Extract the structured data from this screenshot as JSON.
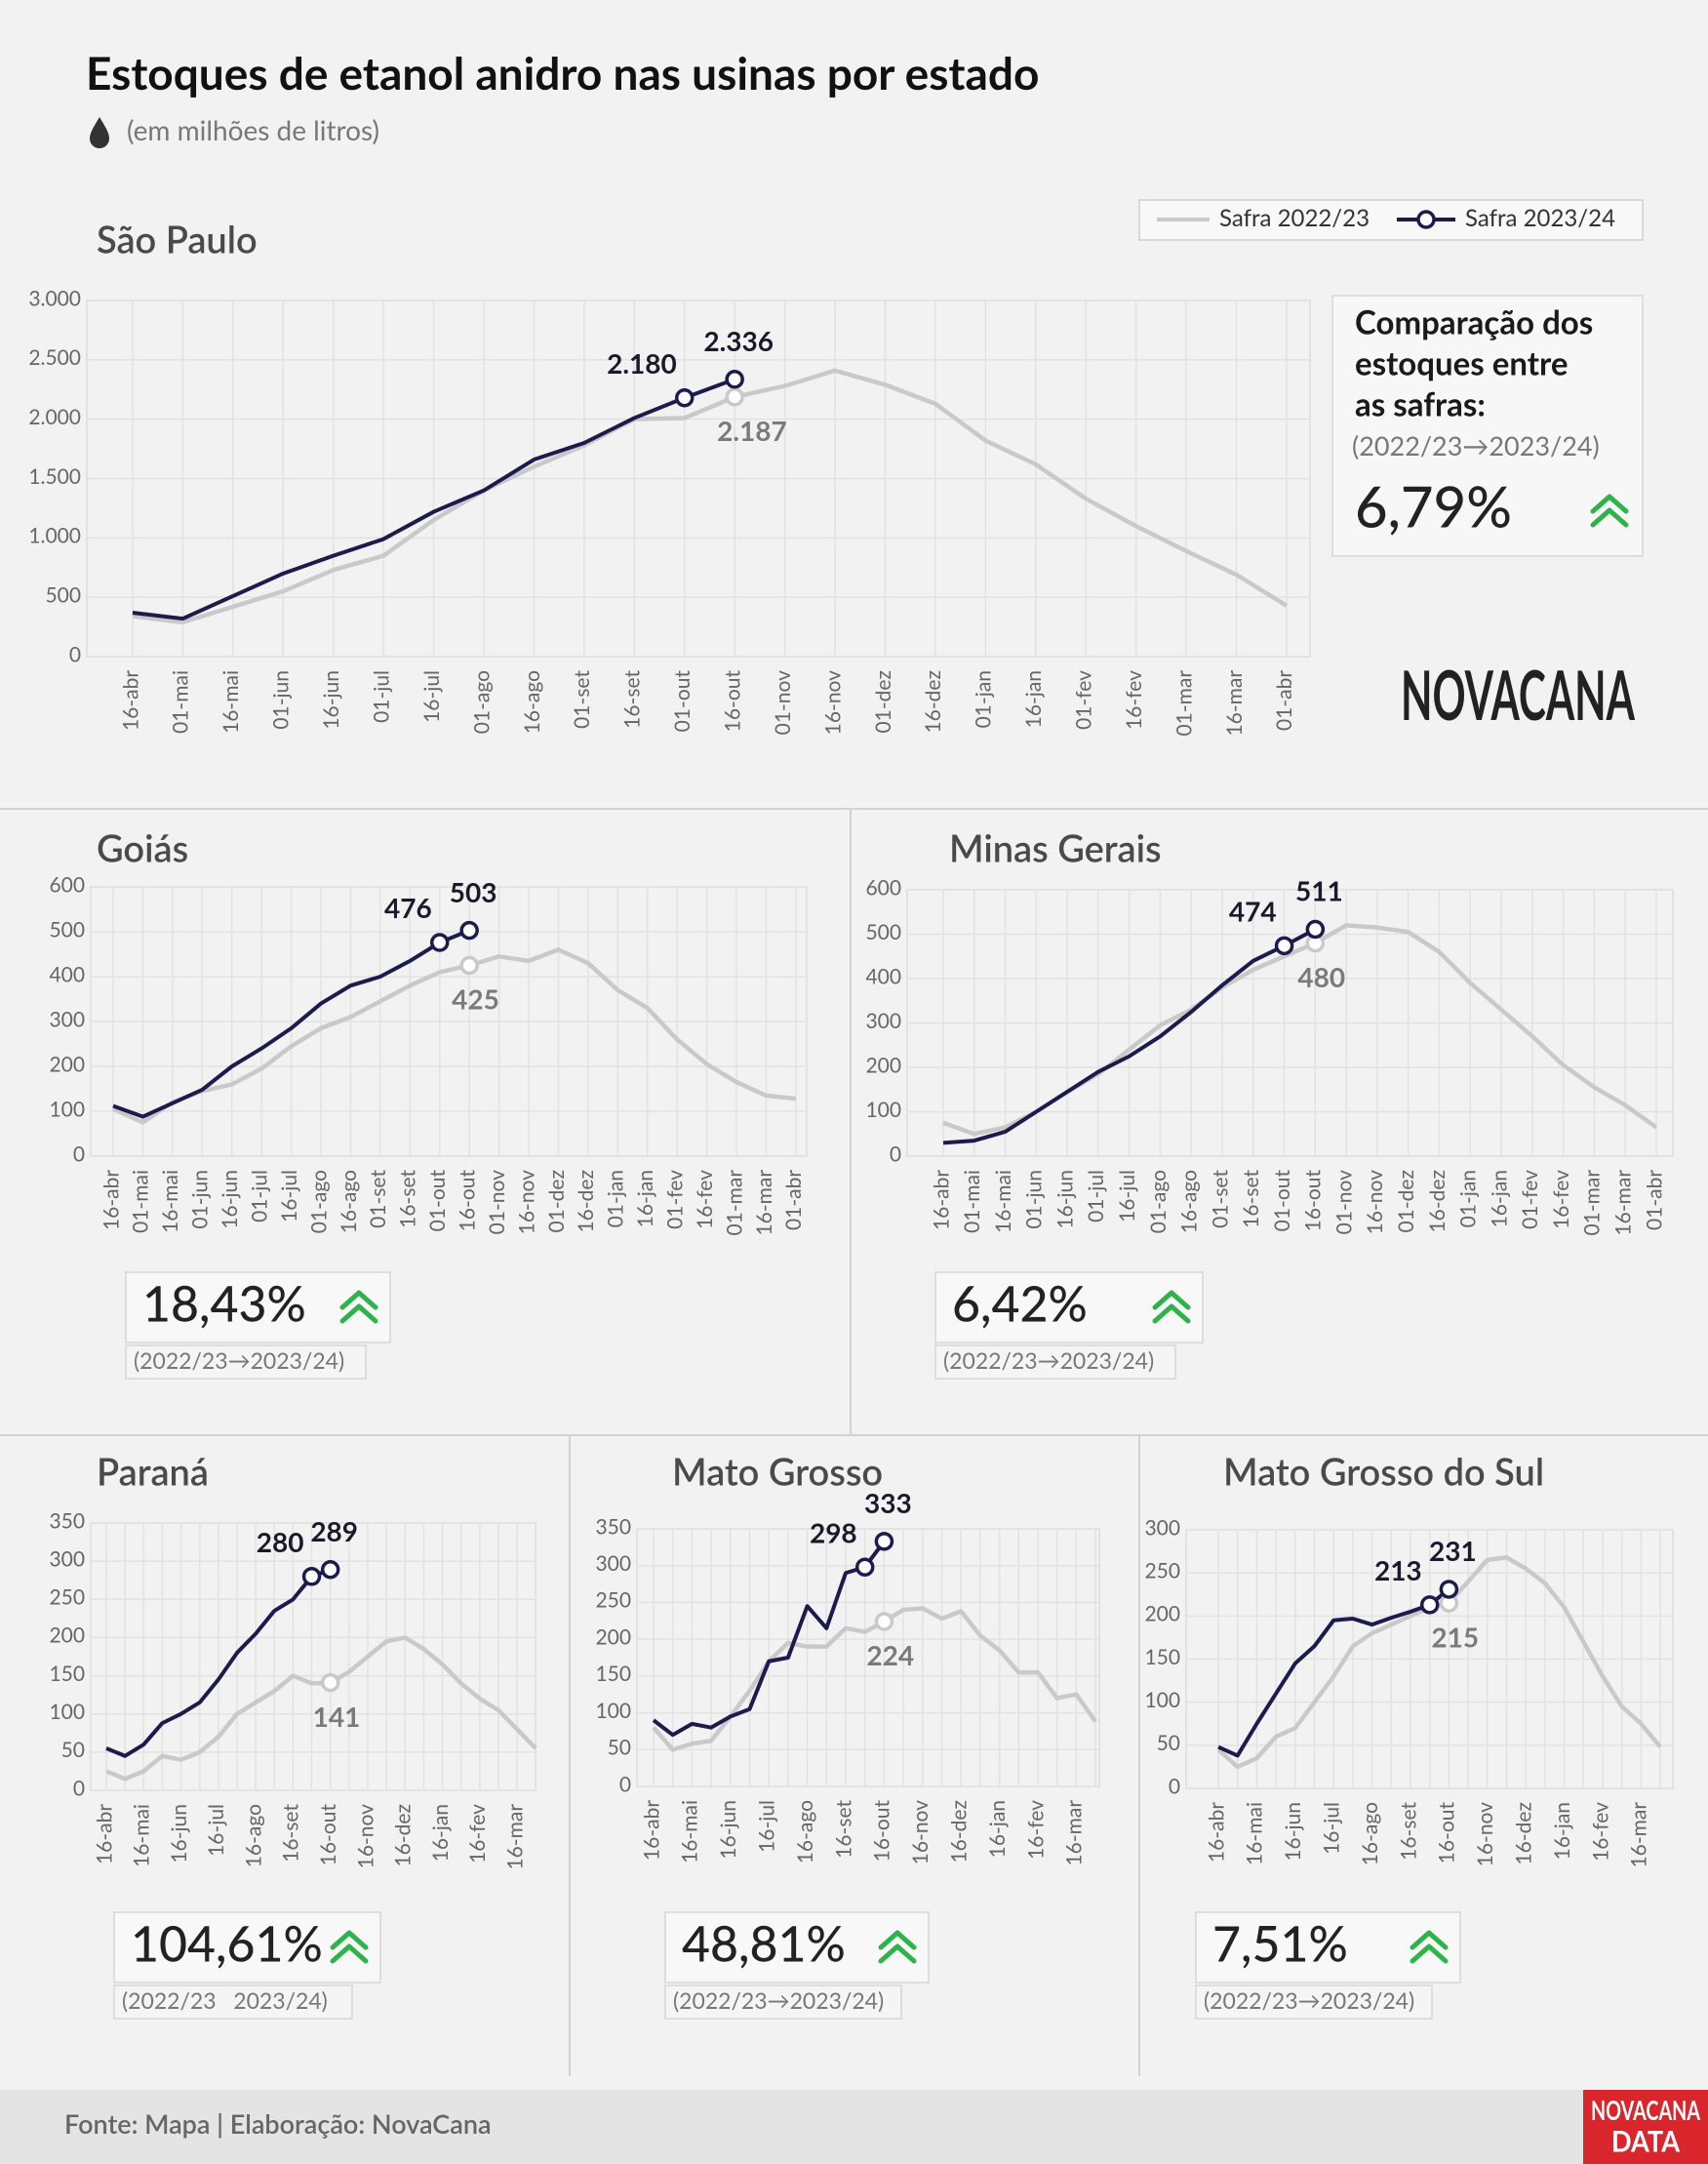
{
  "title": "Estoques de etanol anidro nas usinas por estado",
  "subtitle": "(em milhões de litros)",
  "source": "Fonte: Mapa | Elaboração: NovaCana",
  "logo": "NOVACANA",
  "badge": [
    "NOVACANA",
    "DATA"
  ],
  "chart_data": [
    {
      "type": "line",
      "title": "São Paulo",
      "legend": "top-right",
      "categories": [
        "16-abr",
        "01-mai",
        "16-mai",
        "01-jun",
        "16-jun",
        "01-jul",
        "16-jul",
        "01-ago",
        "16-ago",
        "01-set",
        "16-set",
        "01-out",
        "16-out",
        "01-nov",
        "16-nov",
        "01-dez",
        "16-dez",
        "01-jan",
        "16-jan",
        "01-fev",
        "16-fev",
        "01-mar",
        "16-mar",
        "01-abr"
      ],
      "series": [
        {
          "name": "Safra 2022/23",
          "color": "#c9c9c9",
          "values": [
            340,
            290,
            420,
            550,
            730,
            850,
            1150,
            1400,
            1600,
            1780,
            2000,
            2010,
            2187,
            2280,
            2410,
            2290,
            2130,
            1820,
            1620,
            1330,
            1100,
            890,
            690,
            430
          ],
          "value_labels": [
            null,
            null,
            null,
            null,
            null,
            null,
            null,
            null,
            null,
            null,
            null,
            null,
            "2.187",
            null,
            null,
            null,
            null,
            null,
            null,
            null,
            null,
            null,
            null,
            null
          ]
        },
        {
          "name": "Safra 2023/24",
          "color": "#1b1b4d",
          "values": [
            370,
            320,
            510,
            700,
            850,
            990,
            1220,
            1400,
            1660,
            1800,
            2010,
            2180,
            2336,
            null,
            null,
            null,
            null,
            null,
            null,
            null,
            null,
            null,
            null,
            null
          ],
          "value_labels": [
            null,
            null,
            null,
            null,
            null,
            null,
            null,
            null,
            null,
            null,
            null,
            "2.180",
            "2.336",
            null,
            null,
            null,
            null,
            null,
            null,
            null,
            null,
            null,
            null,
            null
          ]
        }
      ],
      "ylim": [
        0,
        3000
      ],
      "yticks": [
        0,
        500,
        {
          "value": 1000,
          "label": "1.000"
        },
        {
          "value": 1500,
          "label": "1.500"
        },
        {
          "value": 2000,
          "label": "2.000"
        },
        {
          "value": 2500,
          "label": "2.500"
        },
        {
          "value": 3000,
          "label": "3.000"
        }
      ],
      "grid": true,
      "comparison_title": [
        "Comparação dos",
        "estoques entre",
        "as safras:"
      ],
      "comparison_period": "(2022/23→2023/24)",
      "comparison": "6,79%"
    },
    {
      "type": "line",
      "title": "Goiás",
      "categories": [
        "16-abr",
        "01-mai",
        "16-mai",
        "01-jun",
        "16-jun",
        "01-jul",
        "16-jul",
        "01-ago",
        "16-ago",
        "01-set",
        "16-set",
        "01-out",
        "16-out",
        "01-nov",
        "16-nov",
        "01-dez",
        "16-dez",
        "01-jan",
        "16-jan",
        "01-fev",
        "16-fev",
        "01-mar",
        "16-mar",
        "01-abr"
      ],
      "series": [
        {
          "name": "Safra 2022/23",
          "color": "#c9c9c9",
          "values": [
            105,
            75,
            120,
            145,
            160,
            195,
            245,
            285,
            310,
            345,
            380,
            410,
            425,
            445,
            435,
            460,
            430,
            370,
            330,
            260,
            205,
            165,
            135,
            128
          ]
        },
        {
          "name": "Safra 2023/24",
          "color": "#1b1b4d",
          "values": [
            112,
            88,
            118,
            148,
            200,
            240,
            285,
            340,
            380,
            400,
            435,
            476,
            503,
            null,
            null,
            null,
            null,
            null,
            null,
            null,
            null,
            null,
            null,
            null
          ]
        }
      ],
      "ylim": [
        0,
        600
      ],
      "yticks": [
        0,
        100,
        200,
        300,
        400,
        500,
        600
      ],
      "grid": true,
      "comparison": "18,43%",
      "comparison_period": "(2022/23→2023/24)"
    },
    {
      "type": "line",
      "title": "Minas Gerais",
      "categories": [
        "16-abr",
        "01-mai",
        "16-mai",
        "01-jun",
        "16-jun",
        "01-jul",
        "16-jul",
        "01-ago",
        "16-ago",
        "01-set",
        "16-set",
        "01-out",
        "16-out",
        "01-nov",
        "16-nov",
        "01-dez",
        "16-dez",
        "01-jan",
        "16-jan",
        "01-fev",
        "16-fev",
        "01-mar",
        "16-mar",
        "01-abr"
      ],
      "series": [
        {
          "name": "Safra 2022/23",
          "color": "#c9c9c9",
          "values": [
            75,
            50,
            65,
            100,
            145,
            185,
            240,
            295,
            330,
            380,
            420,
            450,
            480,
            520,
            515,
            505,
            460,
            390,
            330,
            270,
            205,
            155,
            115,
            65
          ]
        },
        {
          "name": "Safra 2023/24",
          "color": "#1b1b4d",
          "values": [
            30,
            35,
            55,
            100,
            145,
            190,
            225,
            270,
            325,
            385,
            440,
            474,
            511,
            null,
            null,
            null,
            null,
            null,
            null,
            null,
            null,
            null,
            null,
            null
          ]
        }
      ],
      "ylim": [
        0,
        600
      ],
      "yticks": [
        0,
        100,
        200,
        300,
        400,
        500,
        600
      ],
      "grid": true,
      "comparison": "6,42%",
      "comparison_period": "(2022/23→2023/24)"
    },
    {
      "type": "line",
      "title": "Paraná",
      "categories": [
        "16-abr",
        null,
        "16-mai",
        null,
        "16-jun",
        null,
        "16-jul",
        null,
        "16-ago",
        null,
        "16-set",
        null,
        "16-out",
        null,
        "16-nov",
        null,
        "16-dez",
        null,
        "16-jan",
        null,
        "16-fev",
        null,
        "16-mar",
        null
      ],
      "series": [
        {
          "name": "Safra 2022/23",
          "color": "#c9c9c9",
          "values": [
            25,
            15,
            25,
            45,
            40,
            50,
            70,
            100,
            115,
            130,
            150,
            140,
            141,
            155,
            175,
            195,
            200,
            185,
            165,
            140,
            120,
            105,
            80,
            55
          ]
        },
        {
          "name": "Safra 2023/24",
          "color": "#1b1b4d",
          "values": [
            55,
            45,
            60,
            88,
            100,
            115,
            145,
            180,
            205,
            235,
            250,
            280,
            289,
            null,
            null,
            null,
            null,
            null,
            null,
            null,
            null,
            null,
            null,
            null
          ]
        }
      ],
      "ylim": [
        0,
        350
      ],
      "yticks": [
        0,
        50,
        100,
        150,
        200,
        250,
        300,
        350
      ],
      "grid": true,
      "comparison": "104,61%",
      "comparison_period": "(2022/23   2023/24)"
    },
    {
      "type": "line",
      "title": "Mato Grosso",
      "categories": [
        "16-abr",
        null,
        "16-mai",
        null,
        "16-jun",
        null,
        "16-jul",
        null,
        "16-ago",
        null,
        "16-set",
        null,
        "16-out",
        null,
        "16-nov",
        null,
        "16-dez",
        null,
        "16-jan",
        null,
        "16-fev",
        null,
        "16-mar",
        null
      ],
      "series": [
        {
          "name": "Safra 2022/23",
          "color": "#c9c9c9",
          "values": [
            80,
            50,
            58,
            62,
            95,
            130,
            170,
            195,
            190,
            190,
            215,
            210,
            224,
            240,
            242,
            228,
            238,
            205,
            185,
            155,
            155,
            120,
            125,
            88
          ]
        },
        {
          "name": "Safra 2023/24",
          "color": "#1b1b4d",
          "values": [
            90,
            70,
            85,
            80,
            95,
            105,
            170,
            175,
            245,
            215,
            290,
            298,
            333,
            null,
            null,
            null,
            null,
            null,
            null,
            null,
            null,
            null,
            null,
            null
          ]
        }
      ],
      "ylim": [
        0,
        350
      ],
      "yticks": [
        0,
        50,
        100,
        150,
        200,
        250,
        300,
        350
      ],
      "grid": true,
      "comparison": "48,81%",
      "comparison_period": "(2022/23→2023/24)"
    },
    {
      "type": "line",
      "title": "Mato Grosso do Sul",
      "categories": [
        "16-abr",
        null,
        "16-mai",
        null,
        "16-jun",
        null,
        "16-jul",
        null,
        "16-ago",
        null,
        "16-set",
        null,
        "16-out",
        null,
        "16-nov",
        null,
        "16-dez",
        null,
        "16-jan",
        null,
        "16-fev",
        null,
        "16-mar",
        null
      ],
      "series": [
        {
          "name": "Safra 2022/23",
          "color": "#c9c9c9",
          "values": [
            45,
            25,
            35,
            60,
            70,
            100,
            130,
            165,
            180,
            190,
            200,
            210,
            215,
            240,
            265,
            268,
            255,
            238,
            210,
            170,
            130,
            95,
            75,
            48
          ]
        },
        {
          "name": "Safra 2023/24",
          "color": "#1b1b4d",
          "values": [
            48,
            38,
            75,
            110,
            145,
            165,
            195,
            197,
            190,
            198,
            205,
            213,
            231,
            null,
            null,
            null,
            null,
            null,
            null,
            null,
            null,
            null,
            null,
            null
          ]
        }
      ],
      "ylim": [
        0,
        300
      ],
      "yticks": [
        0,
        50,
        100,
        150,
        200,
        250,
        300
      ],
      "grid": true,
      "comparison": "7,51%",
      "comparison_period": "(2022/23→2023/24)"
    }
  ]
}
